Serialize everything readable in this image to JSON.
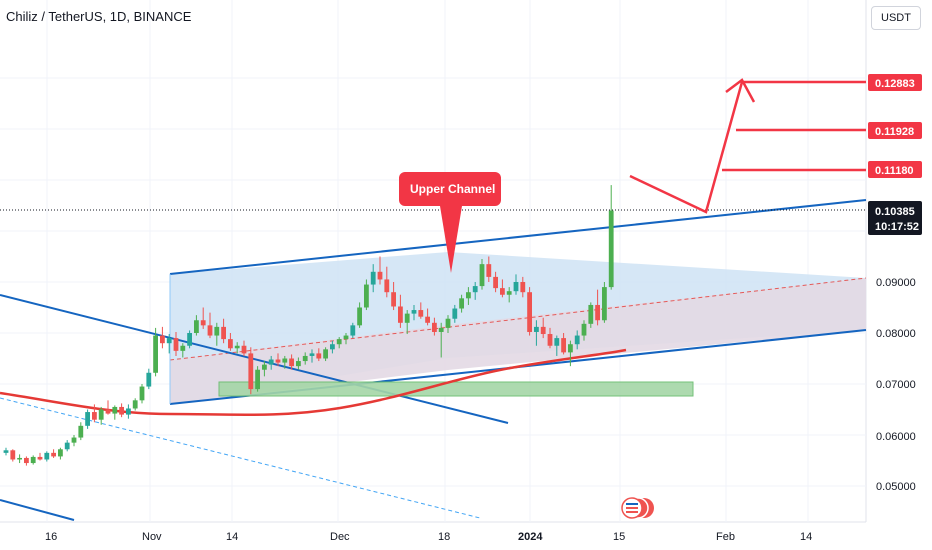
{
  "header": {
    "title": "Chiliz / TetherUS, 1D, BINANCE",
    "currency": "USDT"
  },
  "colors": {
    "up": "#26a69a",
    "up_alt": "#4caf50",
    "down": "#ef5350",
    "channel": "#1565c0",
    "ma": "#e53935",
    "tag": "#f23645",
    "zone": "#66bb6a"
  },
  "chart_data": {
    "type": "candlestick",
    "x_ticks": [
      "16",
      "Nov",
      "14",
      "Dec",
      "18",
      "2024",
      "15",
      "Feb",
      "14"
    ],
    "y_ticks": [
      "0.05000",
      "0.06000",
      "0.07000",
      "0.08000",
      "0.09000"
    ],
    "ylim": [
      0.045,
      0.135
    ],
    "price_tags": [
      {
        "label": "0.12883",
        "value": 0.12883
      },
      {
        "label": "0.11928",
        "value": 0.11928
      },
      {
        "label": "0.11180",
        "value": 0.1118
      }
    ],
    "current_price": {
      "label": "0.10385",
      "value": 0.10385,
      "countdown": "10:17:52"
    },
    "annotation": "Upper Channel",
    "candles_approx": [
      [
        0.0565,
        0.0575,
        0.056,
        0.057
      ],
      [
        0.057,
        0.0572,
        0.0548,
        0.0552
      ],
      [
        0.0552,
        0.0562,
        0.0545,
        0.0555
      ],
      [
        0.0555,
        0.0558,
        0.054,
        0.0545
      ],
      [
        0.0545,
        0.056,
        0.0542,
        0.0557
      ],
      [
        0.0557,
        0.0565,
        0.055,
        0.0552
      ],
      [
        0.0552,
        0.0568,
        0.0548,
        0.0565
      ],
      [
        0.0565,
        0.0572,
        0.0555,
        0.0558
      ],
      [
        0.0558,
        0.0575,
        0.0552,
        0.0572
      ],
      [
        0.0572,
        0.059,
        0.0568,
        0.0585
      ],
      [
        0.0585,
        0.06,
        0.0578,
        0.0595
      ],
      [
        0.0595,
        0.0625,
        0.059,
        0.0618
      ],
      [
        0.0618,
        0.065,
        0.0612,
        0.0645
      ],
      [
        0.0645,
        0.066,
        0.0625,
        0.063
      ],
      [
        0.063,
        0.0655,
        0.062,
        0.065
      ],
      [
        0.065,
        0.0668,
        0.064,
        0.0642
      ],
      [
        0.0642,
        0.0658,
        0.063,
        0.0655
      ],
      [
        0.0655,
        0.0662,
        0.0635,
        0.064
      ],
      [
        0.064,
        0.066,
        0.0632,
        0.0652
      ],
      [
        0.0652,
        0.0672,
        0.0648,
        0.0668
      ],
      [
        0.0668,
        0.07,
        0.0662,
        0.0695
      ],
      [
        0.0695,
        0.073,
        0.069,
        0.0722
      ],
      [
        0.0722,
        0.081,
        0.0715,
        0.0795
      ],
      [
        0.0795,
        0.0812,
        0.077,
        0.078
      ],
      [
        0.078,
        0.0798,
        0.076,
        0.079
      ],
      [
        0.079,
        0.0802,
        0.0755,
        0.0765
      ],
      [
        0.0765,
        0.078,
        0.0752,
        0.0775
      ],
      [
        0.0775,
        0.0805,
        0.077,
        0.08
      ],
      [
        0.08,
        0.0835,
        0.0795,
        0.0825
      ],
      [
        0.0825,
        0.085,
        0.0808,
        0.0815
      ],
      [
        0.0815,
        0.084,
        0.079,
        0.0795
      ],
      [
        0.0795,
        0.082,
        0.0775,
        0.0812
      ],
      [
        0.0812,
        0.0828,
        0.078,
        0.0788
      ],
      [
        0.0788,
        0.08,
        0.0765,
        0.077
      ],
      [
        0.077,
        0.0782,
        0.076,
        0.0775
      ],
      [
        0.0775,
        0.0785,
        0.0755,
        0.076
      ],
      [
        0.076,
        0.0772,
        0.068,
        0.069
      ],
      [
        0.069,
        0.0735,
        0.0685,
        0.0728
      ],
      [
        0.0728,
        0.0745,
        0.0715,
        0.0738
      ],
      [
        0.0738,
        0.0755,
        0.0728,
        0.0748
      ],
      [
        0.0748,
        0.076,
        0.0735,
        0.0742
      ],
      [
        0.0742,
        0.0755,
        0.073,
        0.075
      ],
      [
        0.075,
        0.0758,
        0.0728,
        0.0735
      ],
      [
        0.0735,
        0.0752,
        0.0728,
        0.0745
      ],
      [
        0.0745,
        0.0762,
        0.0738,
        0.0755
      ],
      [
        0.0755,
        0.0768,
        0.0742,
        0.076
      ],
      [
        0.076,
        0.077,
        0.0745,
        0.075
      ],
      [
        0.075,
        0.0772,
        0.0745,
        0.0768
      ],
      [
        0.0768,
        0.0785,
        0.076,
        0.0778
      ],
      [
        0.0778,
        0.0792,
        0.077,
        0.0788
      ],
      [
        0.0788,
        0.08,
        0.0778,
        0.0795
      ],
      [
        0.0795,
        0.082,
        0.079,
        0.0815
      ],
      [
        0.0815,
        0.086,
        0.081,
        0.085
      ],
      [
        0.085,
        0.0905,
        0.0845,
        0.0895
      ],
      [
        0.0895,
        0.0935,
        0.088,
        0.092
      ],
      [
        0.092,
        0.095,
        0.0895,
        0.0905
      ],
      [
        0.0905,
        0.093,
        0.087,
        0.088
      ],
      [
        0.088,
        0.09,
        0.0845,
        0.0852
      ],
      [
        0.0852,
        0.0875,
        0.081,
        0.082
      ],
      [
        0.082,
        0.0845,
        0.0798,
        0.0838
      ],
      [
        0.0838,
        0.0855,
        0.0825,
        0.0845
      ],
      [
        0.0845,
        0.086,
        0.0828,
        0.0832
      ],
      [
        0.0832,
        0.0848,
        0.0815,
        0.082
      ],
      [
        0.082,
        0.083,
        0.0795,
        0.0802
      ],
      [
        0.0802,
        0.082,
        0.0752,
        0.081
      ],
      [
        0.081,
        0.0835,
        0.08,
        0.0828
      ],
      [
        0.0828,
        0.0855,
        0.082,
        0.0848
      ],
      [
        0.0848,
        0.0875,
        0.084,
        0.0868
      ],
      [
        0.0868,
        0.089,
        0.0855,
        0.088
      ],
      [
        0.088,
        0.09,
        0.0865,
        0.0892
      ],
      [
        0.0892,
        0.0945,
        0.0885,
        0.0935
      ],
      [
        0.0935,
        0.095,
        0.09,
        0.091
      ],
      [
        0.091,
        0.092,
        0.088,
        0.0888
      ],
      [
        0.0888,
        0.0905,
        0.087,
        0.0875
      ],
      [
        0.0875,
        0.089,
        0.086,
        0.0882
      ],
      [
        0.0882,
        0.0915,
        0.0875,
        0.09
      ],
      [
        0.09,
        0.091,
        0.087,
        0.088
      ],
      [
        0.088,
        0.089,
        0.0795,
        0.0802
      ],
      [
        0.0802,
        0.0825,
        0.0775,
        0.0812
      ],
      [
        0.0812,
        0.083,
        0.079,
        0.0798
      ],
      [
        0.0798,
        0.081,
        0.077,
        0.0775
      ],
      [
        0.0775,
        0.0795,
        0.0755,
        0.079
      ],
      [
        0.079,
        0.08,
        0.0758,
        0.0762
      ],
      [
        0.0762,
        0.0785,
        0.0735,
        0.0778
      ],
      [
        0.0778,
        0.0805,
        0.0768,
        0.0795
      ],
      [
        0.0795,
        0.0825,
        0.0785,
        0.0818
      ],
      [
        0.0818,
        0.086,
        0.081,
        0.0855
      ],
      [
        0.0855,
        0.0885,
        0.0815,
        0.0825
      ],
      [
        0.0825,
        0.09,
        0.082,
        0.089
      ],
      [
        0.089,
        0.109,
        0.0885,
        0.104
      ]
    ]
  }
}
